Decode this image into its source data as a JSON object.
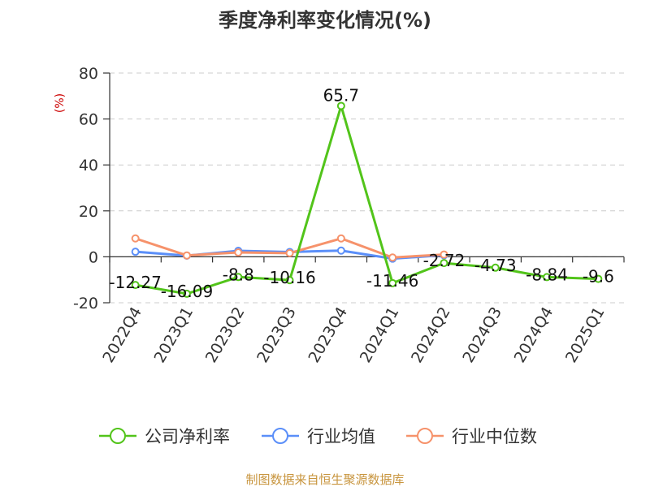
{
  "chart_data": {
    "type": "line",
    "title": "季度净利率变化情况(%)",
    "ylabel": "(%)",
    "source": "制图数据来自恒生聚源数据库",
    "categories": [
      "2022Q4",
      "2023Q1",
      "2023Q2",
      "2023Q3",
      "2023Q4",
      "2024Q1",
      "2024Q2",
      "2024Q3",
      "2024Q4",
      "2025Q1"
    ],
    "ylim": [
      -20,
      80
    ],
    "yticks": [
      -20,
      0,
      20,
      40,
      60,
      80
    ],
    "grid": true,
    "legend_position": "bottom",
    "series": [
      {
        "name": "公司净利率",
        "color": "#52c41a",
        "values": [
          -12.27,
          -16.09,
          -8.8,
          -10.16,
          65.7,
          -11.46,
          -2.72,
          -4.73,
          -8.84,
          -9.6
        ],
        "labels": [
          "-12.27",
          "-16.09",
          "-8.8",
          "-10.16",
          "65.7",
          "-11.46",
          "-2.72",
          "-4.73",
          "-8.84",
          "-9.6"
        ]
      },
      {
        "name": "行业均值",
        "color": "#5b8ff9",
        "values": [
          2.2,
          0.5,
          2.6,
          2.1,
          2.7,
          -0.8,
          0.7,
          null,
          null,
          null
        ]
      },
      {
        "name": "行业中位数",
        "color": "#f6926b",
        "values": [
          8.0,
          0.6,
          1.9,
          1.6,
          8.0,
          -0.3,
          1.0,
          null,
          null,
          null
        ]
      }
    ]
  }
}
